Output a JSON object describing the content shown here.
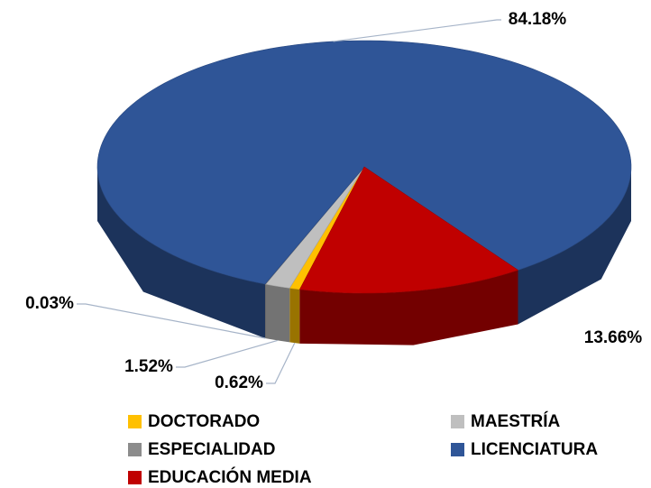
{
  "chart_data": {
    "type": "pie3d",
    "categories": [
      "DOCTORADO",
      "MAESTRÍA",
      "ESPECIALIDAD",
      "LICENCIATURA",
      "EDUCACIÓN MEDIA"
    ],
    "values": [
      0.62,
      1.52,
      0.03,
      84.18,
      13.66
    ],
    "value_labels": [
      "0.62%",
      "1.52%",
      "0.03%",
      "84.18%",
      "13.66%"
    ],
    "colors": [
      "#ffc000",
      "#bfbfbf",
      "#8c8c8c",
      "#2f5597",
      "#c00000"
    ],
    "legend": "bottom"
  }
}
